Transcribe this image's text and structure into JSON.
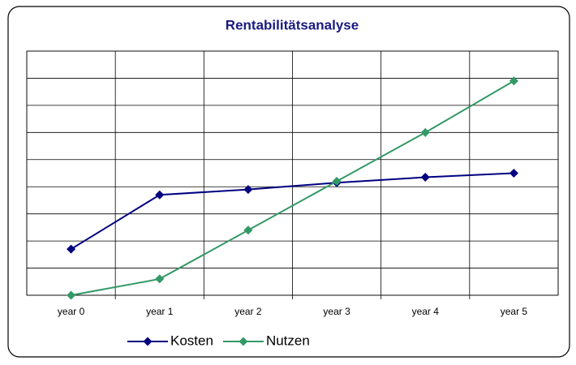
{
  "chart_data": {
    "type": "line",
    "title": "Rentabilitätsanalyse",
    "categories": [
      "year 0",
      "year 1",
      "year 2",
      "year 3",
      "year 4",
      "year 5"
    ],
    "series": [
      {
        "name": "Kosten",
        "color": "#000080",
        "values": [
          1.7,
          3.7,
          3.9,
          4.15,
          4.35,
          4.5
        ]
      },
      {
        "name": "Nutzen",
        "color": "#339966",
        "values": [
          0,
          0.6,
          2.4,
          4.2,
          6.0,
          7.9
        ]
      }
    ],
    "ylim": [
      0,
      9
    ],
    "yticks": [
      0,
      1,
      2,
      3,
      4,
      5,
      6,
      7,
      8,
      9
    ],
    "grid": true,
    "legend": "bottom"
  }
}
